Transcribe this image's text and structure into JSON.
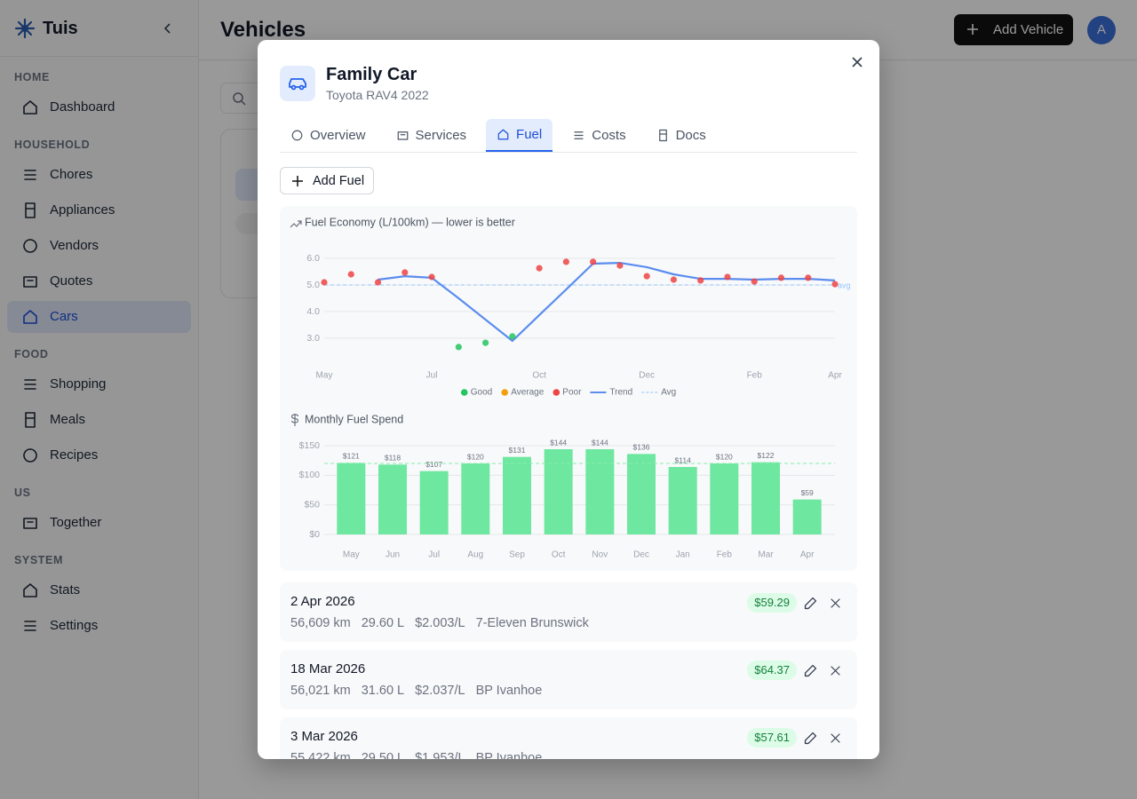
{
  "sidebar": {
    "brand": "Tuis",
    "sections": [
      {
        "title": "HOME",
        "items": [
          {
            "label": "Dashboard"
          }
        ]
      },
      {
        "title": "HOUSEHOLD",
        "items": [
          {
            "label": "Chores"
          },
          {
            "label": "Appliances"
          },
          {
            "label": "Vendors"
          },
          {
            "label": "Quotes"
          },
          {
            "label": "Cars",
            "active": true
          }
        ]
      },
      {
        "title": "FOOD",
        "items": [
          {
            "label": "Shopping"
          },
          {
            "label": "Meals"
          },
          {
            "label": "Recipes"
          }
        ]
      },
      {
        "title": "US",
        "items": [
          {
            "label": "Together"
          }
        ]
      },
      {
        "title": "SYSTEM",
        "items": [
          {
            "label": "Stats"
          },
          {
            "label": "Settings"
          }
        ]
      }
    ]
  },
  "header": {
    "title": "Vehicles",
    "add_button": "Add Vehicle",
    "avatar": "A"
  },
  "modal": {
    "title": "Family Car",
    "subtitle": "Toyota RAV4 2022",
    "tabs": [
      {
        "label": "Overview"
      },
      {
        "label": "Services"
      },
      {
        "label": "Fuel",
        "active": true
      },
      {
        "label": "Costs"
      },
      {
        "label": "Docs"
      }
    ],
    "add_button": "Add Fuel",
    "fuel_entries": [
      {
        "date": "2 Apr 2026",
        "odometer": "56,609 km",
        "volume": "29.60 L",
        "price": "$2.003/L",
        "station": "7-Eleven Brunswick",
        "cost": "$59.29"
      },
      {
        "date": "18 Mar 2026",
        "odometer": "56,021 km",
        "volume": "31.60 L",
        "price": "$2.037/L",
        "station": "BP Ivanhoe",
        "cost": "$64.37"
      },
      {
        "date": "3 Mar 2026",
        "odometer": "55,422 km",
        "volume": "29.50 L",
        "price": "$1.953/L",
        "station": "BP Ivanhoe",
        "cost": "$57.61"
      }
    ]
  },
  "chart_data": [
    {
      "type": "scatter",
      "title": "Fuel Economy (L/100km) — lower is better",
      "categories": [
        "May",
        null,
        null,
        null,
        "Jul",
        null,
        null,
        null,
        "Oct",
        null,
        null,
        null,
        "Dec",
        null,
        null,
        null,
        "Feb",
        null,
        null,
        "Apr"
      ],
      "series": [
        {
          "name": "Good",
          "color": "#22c55e",
          "values": [
            null,
            null,
            null,
            null,
            null,
            2.67,
            2.83,
            3.07,
            null,
            null,
            null,
            null,
            null,
            null,
            null,
            null,
            null,
            null,
            null,
            null
          ]
        },
        {
          "name": "Average",
          "color": "#f59e0b",
          "values": [
            null,
            null,
            null,
            null,
            null,
            null,
            null,
            null,
            null,
            null,
            null,
            null,
            null,
            null,
            null,
            null,
            null,
            null,
            null,
            null
          ]
        },
        {
          "name": "Poor",
          "color": "#ef4444",
          "values": [
            5.1,
            5.4,
            5.1,
            5.47,
            5.3,
            null,
            null,
            null,
            5.63,
            5.87,
            5.87,
            5.73,
            5.33,
            5.2,
            5.17,
            5.3,
            5.13,
            5.27,
            5.27,
            5.03
          ]
        },
        {
          "name": "Trend",
          "color": "#5b8def",
          "type": "line",
          "values": [
            null,
            null,
            5.2,
            5.33,
            5.27,
            4.5,
            3.7,
            2.9,
            3.87,
            4.83,
            5.8,
            5.83,
            5.67,
            5.4,
            5.23,
            5.23,
            5.2,
            5.23,
            5.23,
            5.17
          ]
        }
      ],
      "reference_line": {
        "name": "Avg",
        "label": "avg",
        "value": 5.0,
        "color": "#93c5fd",
        "dashed": true
      },
      "ylim": [
        2.5,
        6.5
      ],
      "yticks": [
        {
          "value": 3,
          "label": "3.0"
        },
        {
          "value": 4,
          "label": "4.0"
        },
        {
          "value": 5,
          "label": "5.0"
        },
        {
          "value": 6,
          "label": "6.0"
        }
      ],
      "grid": true
    },
    {
      "type": "bar",
      "title": "Monthly Fuel Spend",
      "categories": [
        "May",
        "Jun",
        "Jul",
        "Aug",
        "Sep",
        "Oct",
        "Nov",
        "Dec",
        "Jan",
        "Feb",
        "Mar",
        "Apr"
      ],
      "values": [
        121,
        118,
        107,
        120,
        131,
        144,
        144,
        136,
        114,
        120,
        122,
        59
      ],
      "value_labels": [
        "$121",
        "$118",
        "$107",
        "$120",
        "$131",
        "$144",
        "$144",
        "$136",
        "$114",
        "$120",
        "$122",
        "$59"
      ],
      "color": "#6ee7a0",
      "reference_line": {
        "value": 120,
        "color": "#86efac",
        "dashed": true
      },
      "ylim": [
        0,
        150
      ],
      "yticks": [
        {
          "value": 0,
          "label": "$0"
        },
        {
          "value": 50,
          "label": "$50"
        },
        {
          "value": 100,
          "label": "$100"
        },
        {
          "value": 150,
          "label": "$150"
        }
      ],
      "grid": true
    }
  ]
}
